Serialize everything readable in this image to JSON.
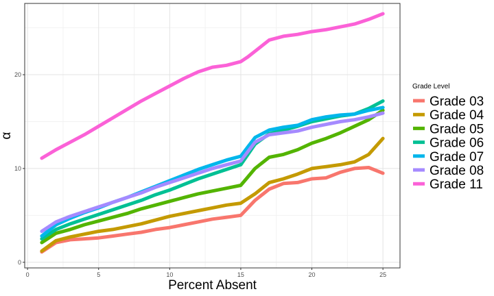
{
  "chart_data": {
    "type": "line",
    "xlabel": "Percent Absent",
    "ylabel": "α",
    "xlim": [
      -0.2,
      26.2
    ],
    "ylim": [
      -0.6,
      27.6
    ],
    "x_ticks": [
      0,
      5,
      10,
      15,
      20,
      25
    ],
    "y_ticks": [
      0,
      10,
      20
    ],
    "x_tick_labels": [
      "0",
      "5",
      "10",
      "15",
      "20",
      "25"
    ],
    "y_tick_labels": [
      "0",
      "10",
      "20"
    ],
    "grid": true,
    "legend": {
      "title": "Grade Level",
      "position": "right"
    },
    "x": [
      1,
      2,
      3,
      4,
      5,
      6,
      7,
      8,
      9,
      10,
      11,
      12,
      13,
      14,
      15,
      15.5,
      16,
      17,
      18,
      19,
      20,
      21,
      22,
      23,
      24,
      25
    ],
    "series": [
      {
        "name": "Grade 03",
        "color": "#F8766D",
        "values": [
          1.1,
          2.1,
          2.4,
          2.5,
          2.6,
          2.8,
          3.0,
          3.2,
          3.5,
          3.7,
          4.0,
          4.3,
          4.6,
          4.8,
          5.0,
          5.8,
          6.6,
          7.8,
          8.4,
          8.5,
          8.9,
          9.0,
          9.6,
          10.0,
          10.1,
          9.5
        ]
      },
      {
        "name": "Grade 04",
        "color": "#C49A00",
        "values": [
          1.2,
          2.3,
          2.7,
          3.0,
          3.3,
          3.5,
          3.8,
          4.1,
          4.5,
          4.9,
          5.2,
          5.5,
          5.8,
          6.1,
          6.3,
          6.8,
          7.3,
          8.5,
          8.9,
          9.4,
          10.0,
          10.2,
          10.4,
          10.7,
          11.5,
          13.2
        ]
      },
      {
        "name": "Grade 05",
        "color": "#53B400",
        "values": [
          2.1,
          3.1,
          3.5,
          4.0,
          4.4,
          4.8,
          5.2,
          5.7,
          6.1,
          6.5,
          6.9,
          7.3,
          7.6,
          7.9,
          8.2,
          9.1,
          10.0,
          11.2,
          11.5,
          12.0,
          12.7,
          13.2,
          13.8,
          14.5,
          15.2,
          16.2
        ]
      },
      {
        "name": "Grade 06",
        "color": "#00C094",
        "values": [
          2.5,
          3.5,
          4.1,
          4.6,
          5.1,
          5.6,
          6.1,
          6.6,
          7.2,
          7.7,
          8.3,
          8.9,
          9.4,
          9.9,
          10.4,
          11.5,
          12.6,
          13.7,
          14.1,
          14.5,
          15.0,
          15.3,
          15.6,
          15.8,
          16.4,
          17.2
        ]
      },
      {
        "name": "Grade 07",
        "color": "#00B6EB",
        "values": [
          2.8,
          4.0,
          4.7,
          5.3,
          5.8,
          6.4,
          6.9,
          7.5,
          8.1,
          8.7,
          9.3,
          9.9,
          10.4,
          10.9,
          11.3,
          12.3,
          13.3,
          14.1,
          14.4,
          14.6,
          15.2,
          15.5,
          15.7,
          15.8,
          16.2,
          16.5
        ]
      },
      {
        "name": "Grade 08",
        "color": "#A58AFF",
        "values": [
          3.3,
          4.3,
          4.9,
          5.4,
          5.9,
          6.4,
          6.9,
          7.4,
          8.0,
          8.5,
          9.0,
          9.5,
          10.0,
          10.4,
          10.8,
          11.8,
          12.8,
          13.6,
          13.8,
          14.0,
          14.4,
          14.7,
          15.0,
          15.2,
          15.5,
          15.9
        ]
      },
      {
        "name": "Grade 11",
        "color": "#FB61D7",
        "values": [
          11.1,
          12.0,
          12.8,
          13.6,
          14.5,
          15.4,
          16.3,
          17.2,
          18.0,
          18.8,
          19.6,
          20.3,
          20.8,
          21.0,
          21.4,
          21.9,
          22.5,
          23.7,
          24.1,
          24.3,
          24.6,
          24.8,
          25.1,
          25.4,
          25.9,
          26.5
        ]
      }
    ]
  }
}
